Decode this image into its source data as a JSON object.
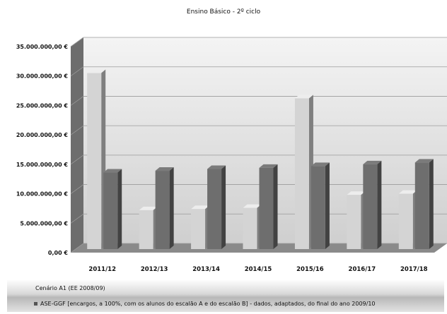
{
  "chart_data": {
    "type": "bar",
    "title": "Ensino Básico - 2º ciclo",
    "xlabel": "",
    "ylabel": "",
    "ylim": [
      0,
      35000000
    ],
    "yticks": [
      0,
      5000000,
      10000000,
      15000000,
      20000000,
      25000000,
      30000000,
      35000000
    ],
    "ytick_labels": [
      "0,00 €",
      "5.000.000,00 €",
      "10.000.000,00 €",
      "15.000.000,00 €",
      "20.000.000,00 €",
      "25.000.000,00 €",
      "30.000.000,00 €",
      "35.000.000,00 €"
    ],
    "grid": true,
    "three_d": true,
    "legend_position": "bottom",
    "categories": [
      "2011/12",
      "2012/13",
      "2013/14",
      "2014/15",
      "2015/16",
      "2016/17",
      "2017/18"
    ],
    "series": [
      {
        "name": "Cenário A1 (EE 2008/09)",
        "color": "#d4d4d4",
        "values": [
          30500000,
          7200000,
          7400000,
          7600000,
          26200000,
          9800000,
          10000000
        ]
      },
      {
        "name": "ASE-GGF [encargos, a 100%, com os alunos do escalão A e do escalão B] - dados, adaptados, do final do ano 2009/10",
        "color": "#6e6e6e",
        "values": [
          13600000,
          13900000,
          14200000,
          14400000,
          14700000,
          15000000,
          15300000
        ]
      }
    ]
  }
}
